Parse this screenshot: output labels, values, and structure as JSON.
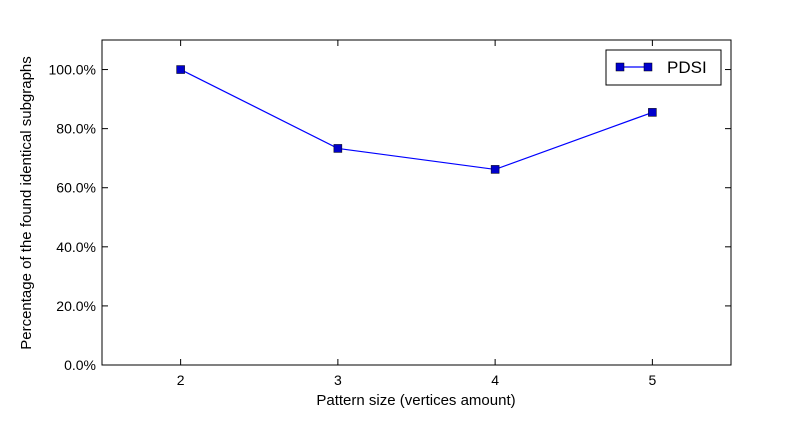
{
  "chart_data": {
    "type": "line",
    "x": [
      2,
      3,
      4,
      5
    ],
    "x_tick_labels": [
      "2",
      "3",
      "4",
      "5"
    ],
    "xlim": [
      1.5,
      5.5
    ],
    "y_tick_labels": [
      "0.0%",
      "20.0%",
      "40.0%",
      "60.0%",
      "80.0%",
      "100.0%"
    ],
    "y_ticks": [
      0,
      20,
      40,
      60,
      80,
      100
    ],
    "ylim": [
      0,
      110
    ],
    "xlabel": "Pattern size (vertices amount)",
    "ylabel": "Percentage of the found identical subgraphs",
    "grid": false,
    "legend_position": "top-right",
    "series": [
      {
        "name": "PDSI",
        "values": [
          100,
          73.3,
          66.2,
          85.5
        ],
        "color": "#0000ff",
        "marker": "square"
      }
    ]
  }
}
